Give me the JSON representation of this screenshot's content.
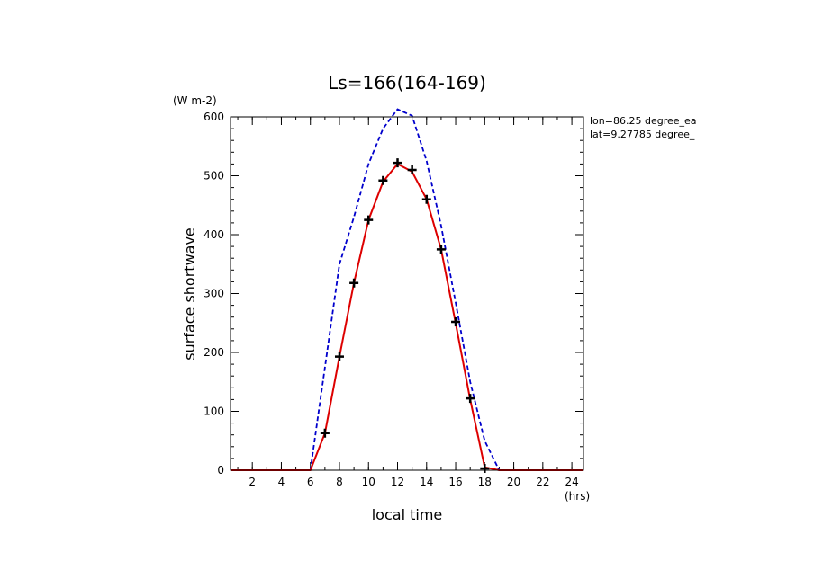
{
  "chart_data": {
    "type": "line",
    "title": "Ls=166(164-169)",
    "xlabel": "local time",
    "ylabel": "surface shortwave",
    "y_unit": "(W m-2)",
    "x_unit": "(hrs)",
    "annotations": [
      "lon=86.25 degree_ea",
      "lat=9.27785 degree_"
    ],
    "xlim": [
      0.5,
      24.8
    ],
    "ylim": [
      0,
      600
    ],
    "x_ticks": [
      2,
      4,
      6,
      8,
      10,
      12,
      14,
      16,
      18,
      20,
      22,
      24
    ],
    "y_ticks": [
      0,
      100,
      200,
      300,
      400,
      500,
      600
    ],
    "grid": false,
    "series": [
      {
        "style": "dashed",
        "color": "#0000cc",
        "x": [
          0.5,
          1,
          2,
          3,
          4,
          5,
          6,
          7,
          8,
          9,
          10,
          11,
          12,
          13,
          14,
          15,
          16,
          17,
          18,
          19,
          20,
          21,
          22,
          23,
          24,
          24.8
        ],
        "values": [
          0,
          0,
          0,
          0,
          0,
          0,
          0,
          175,
          350,
          430,
          520,
          580,
          613,
          602,
          525,
          415,
          285,
          150,
          50,
          0,
          0,
          0,
          0,
          0,
          0,
          0
        ]
      },
      {
        "style": "solid",
        "color": "#dd0000",
        "x": [
          0.5,
          1,
          2,
          3,
          4,
          5,
          6,
          7,
          8,
          9,
          10,
          11,
          12,
          13,
          14,
          15,
          16,
          17,
          18,
          19,
          20,
          21,
          22,
          23,
          24,
          24.8
        ],
        "values": [
          0,
          0,
          0,
          0,
          0,
          0,
          0,
          63,
          193,
          318,
          425,
          490,
          520,
          507,
          460,
          375,
          250,
          120,
          5,
          0,
          0,
          0,
          0,
          0,
          0,
          0
        ]
      },
      {
        "style": "markers",
        "marker": "plus",
        "color": "#000000",
        "x": [
          7,
          8,
          9,
          10,
          11,
          12,
          13,
          14,
          15,
          16,
          17,
          18
        ],
        "values": [
          63,
          193,
          318,
          425,
          492,
          522,
          510,
          460,
          375,
          252,
          122,
          3
        ]
      }
    ]
  }
}
